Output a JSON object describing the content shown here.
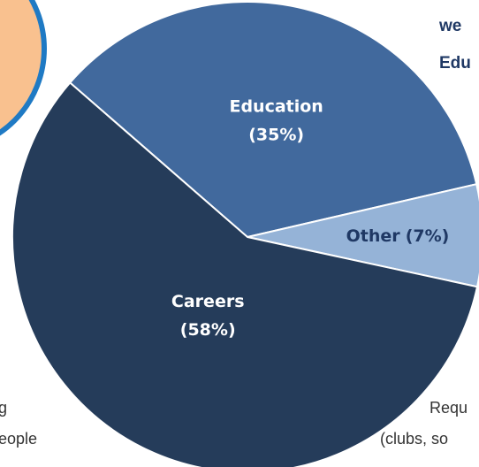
{
  "chart_data": {
    "type": "pie",
    "categories": [
      "Education",
      "Other",
      "Careers"
    ],
    "values": [
      35,
      7,
      58
    ],
    "value_labels": [
      "(35%)",
      "(7%)",
      "(58%)"
    ],
    "colors": [
      "#41699d",
      "#95b3d7",
      "#253c5a"
    ],
    "label_colors": [
      "#ffffff",
      "#1f3864",
      "#ffffff"
    ],
    "annotations": [
      "we",
      "Edu",
      "g",
      "eople",
      "Requ",
      "(clubs, so"
    ]
  }
}
